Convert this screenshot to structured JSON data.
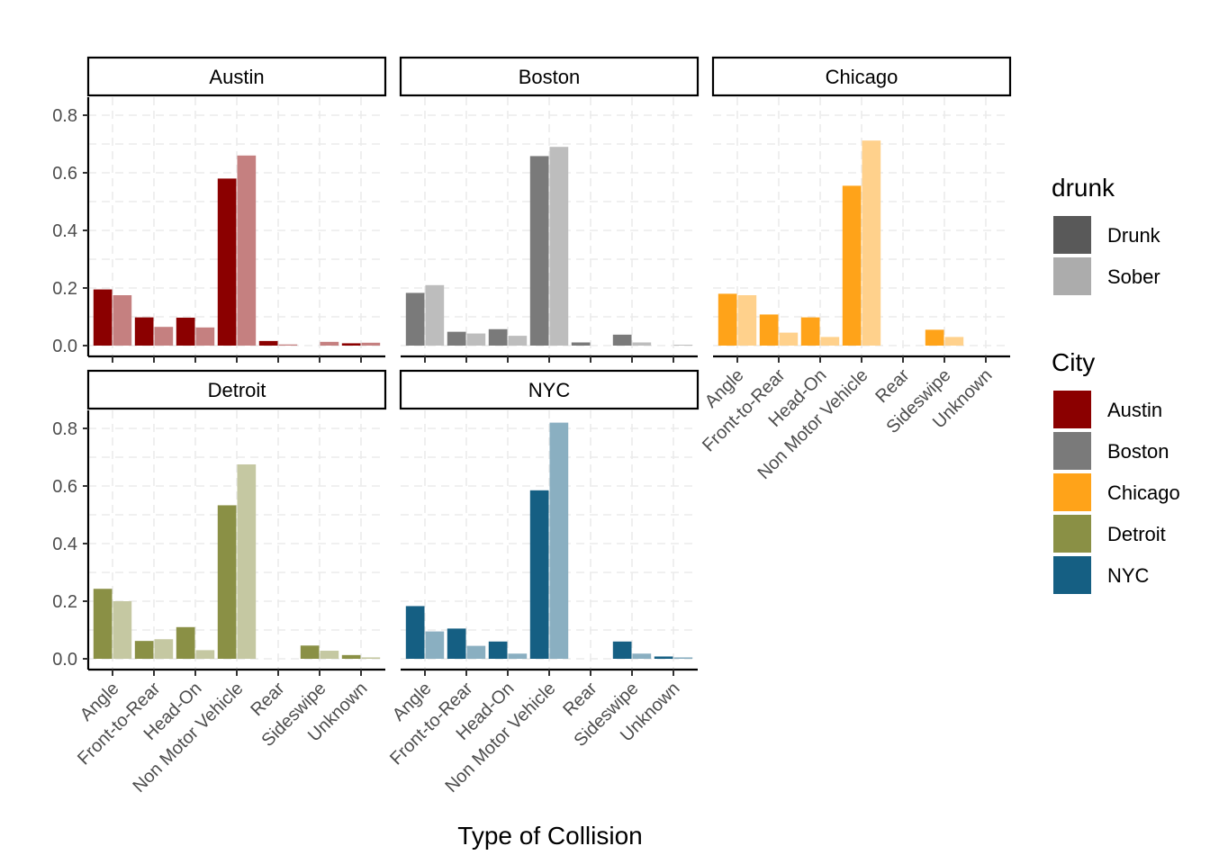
{
  "chart_data": {
    "type": "bar",
    "xlabel": "Type of Collision",
    "ylabel": "",
    "ylim": [
      0,
      0.85
    ],
    "yticks": [
      "0.0",
      "0.2",
      "0.4",
      "0.6",
      "0.8"
    ],
    "categories": [
      "Angle",
      "Front-to-Rear",
      "Head-On",
      "Non Motor Vehicle",
      "Rear",
      "Sideswipe",
      "Unknown"
    ],
    "facets": [
      {
        "city": "Austin",
        "color": "#8B0000",
        "drunk": [
          0.195,
          0.098,
          0.097,
          0.58,
          0.016,
          0.0,
          0.008
        ],
        "sober": [
          0.175,
          0.065,
          0.063,
          0.66,
          0.004,
          0.013,
          0.01
        ]
      },
      {
        "city": "Boston",
        "color": "#7A7A7A",
        "drunk": [
          0.183,
          0.048,
          0.057,
          0.658,
          0.011,
          0.038,
          0.0
        ],
        "sober": [
          0.21,
          0.042,
          0.034,
          0.69,
          0.0,
          0.011,
          0.003
        ]
      },
      {
        "city": "Chicago",
        "color": "#FFA319",
        "drunk": [
          0.18,
          0.108,
          0.098,
          0.555,
          0.0,
          0.055,
          0.0
        ],
        "sober": [
          0.175,
          0.045,
          0.03,
          0.712,
          0.0,
          0.03,
          0.0
        ]
      },
      {
        "city": "Detroit",
        "color": "#8A9045",
        "drunk": [
          0.243,
          0.062,
          0.11,
          0.533,
          0.0,
          0.046,
          0.013
        ],
        "sober": [
          0.2,
          0.068,
          0.03,
          0.675,
          0.0,
          0.028,
          0.005
        ]
      },
      {
        "city": "NYC",
        "color": "#155F83",
        "drunk": [
          0.183,
          0.105,
          0.06,
          0.585,
          0.0,
          0.06,
          0.008
        ],
        "sober": [
          0.095,
          0.045,
          0.018,
          0.82,
          0.0,
          0.018,
          0.005
        ]
      }
    ],
    "legends": {
      "drunk": {
        "title": "drunk",
        "entries": [
          {
            "label": "Drunk",
            "color": "#595959"
          },
          {
            "label": "Sober",
            "color": "#ACACAC"
          }
        ]
      },
      "city": {
        "title": "City",
        "entries": [
          {
            "label": "Austin",
            "color": "#8B0000"
          },
          {
            "label": "Boston",
            "color": "#7A7A7A"
          },
          {
            "label": "Chicago",
            "color": "#FFA319"
          },
          {
            "label": "Detroit",
            "color": "#8A9045"
          },
          {
            "label": "NYC",
            "color": "#155F83"
          }
        ]
      }
    },
    "grid": true,
    "legend_position": "right"
  }
}
